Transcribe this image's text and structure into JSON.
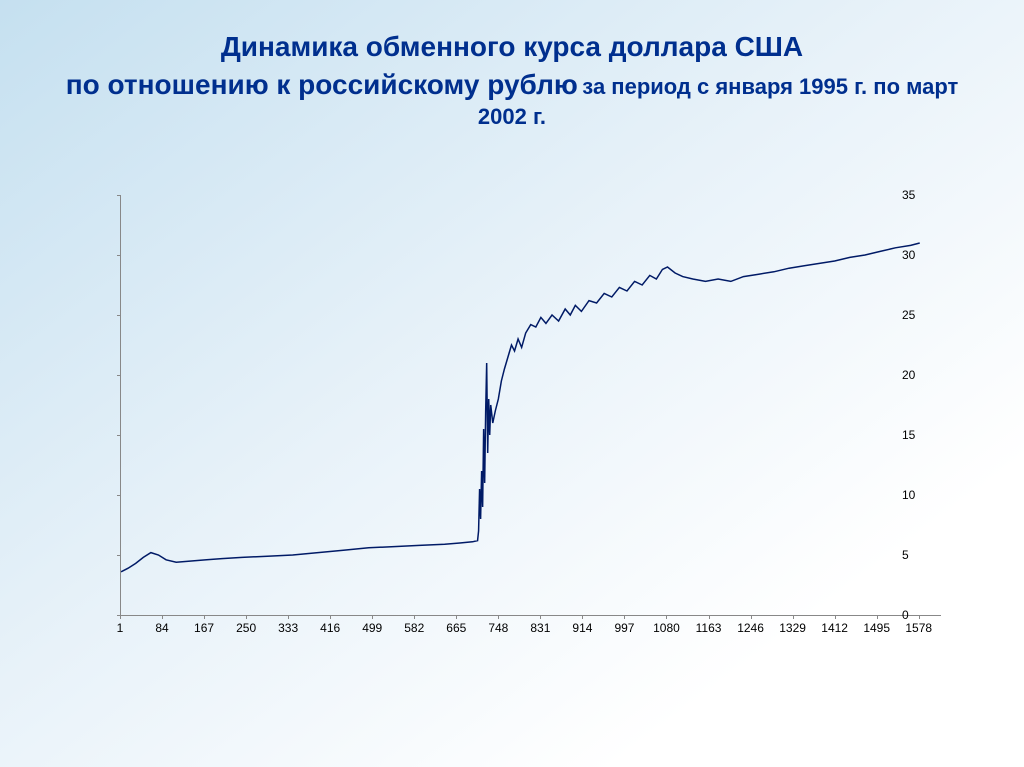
{
  "title": {
    "line1": "Динамика обменного курса доллара США",
    "line2": "по отношению к российскому рублю",
    "sub": "за период с января 1995 г. по март 2002 г."
  },
  "chart": {
    "type": "line",
    "line_color": "#001a66",
    "line_width": 1.5,
    "tick_font_size": 12,
    "tick_color": "#000000",
    "axis_color": "#888888",
    "plot_bg": "transparent",
    "ylim": [
      0,
      35
    ],
    "yticks": [
      0,
      5,
      10,
      15,
      20,
      25,
      30,
      35
    ],
    "xlim": [
      1,
      1620
    ],
    "xticks": [
      1,
      84,
      167,
      250,
      333,
      416,
      499,
      582,
      665,
      748,
      831,
      914,
      997,
      1080,
      1163,
      1246,
      1329,
      1412,
      1495,
      1578
    ],
    "series": [
      {
        "x": 1,
        "y": 3.6
      },
      {
        "x": 15,
        "y": 3.9
      },
      {
        "x": 30,
        "y": 4.3
      },
      {
        "x": 45,
        "y": 4.8
      },
      {
        "x": 60,
        "y": 5.2
      },
      {
        "x": 75,
        "y": 5.0
      },
      {
        "x": 90,
        "y": 4.6
      },
      {
        "x": 110,
        "y": 4.4
      },
      {
        "x": 140,
        "y": 4.5
      },
      {
        "x": 170,
        "y": 4.6
      },
      {
        "x": 200,
        "y": 4.7
      },
      {
        "x": 240,
        "y": 4.8
      },
      {
        "x": 290,
        "y": 4.9
      },
      {
        "x": 340,
        "y": 5.0
      },
      {
        "x": 390,
        "y": 5.2
      },
      {
        "x": 440,
        "y": 5.4
      },
      {
        "x": 490,
        "y": 5.6
      },
      {
        "x": 540,
        "y": 5.7
      },
      {
        "x": 590,
        "y": 5.8
      },
      {
        "x": 640,
        "y": 5.9
      },
      {
        "x": 670,
        "y": 6.0
      },
      {
        "x": 695,
        "y": 6.1
      },
      {
        "x": 705,
        "y": 6.2
      },
      {
        "x": 707,
        "y": 7.0
      },
      {
        "x": 709,
        "y": 10.5
      },
      {
        "x": 711,
        "y": 8.0
      },
      {
        "x": 713,
        "y": 12.0
      },
      {
        "x": 715,
        "y": 9.0
      },
      {
        "x": 717,
        "y": 15.5
      },
      {
        "x": 719,
        "y": 11.0
      },
      {
        "x": 721,
        "y": 17.0
      },
      {
        "x": 723,
        "y": 21.0
      },
      {
        "x": 725,
        "y": 13.5
      },
      {
        "x": 727,
        "y": 18.0
      },
      {
        "x": 729,
        "y": 15.0
      },
      {
        "x": 731,
        "y": 17.5
      },
      {
        "x": 735,
        "y": 16.0
      },
      {
        "x": 740,
        "y": 17.0
      },
      {
        "x": 746,
        "y": 18.0
      },
      {
        "x": 752,
        "y": 19.5
      },
      {
        "x": 758,
        "y": 20.5
      },
      {
        "x": 765,
        "y": 21.5
      },
      {
        "x": 772,
        "y": 22.5
      },
      {
        "x": 778,
        "y": 22.0
      },
      {
        "x": 785,
        "y": 23.0
      },
      {
        "x": 792,
        "y": 22.3
      },
      {
        "x": 800,
        "y": 23.5
      },
      {
        "x": 810,
        "y": 24.2
      },
      {
        "x": 820,
        "y": 24.0
      },
      {
        "x": 830,
        "y": 24.8
      },
      {
        "x": 840,
        "y": 24.3
      },
      {
        "x": 852,
        "y": 25.0
      },
      {
        "x": 865,
        "y": 24.5
      },
      {
        "x": 878,
        "y": 25.5
      },
      {
        "x": 888,
        "y": 25.0
      },
      {
        "x": 898,
        "y": 25.8
      },
      {
        "x": 910,
        "y": 25.3
      },
      {
        "x": 925,
        "y": 26.2
      },
      {
        "x": 940,
        "y": 26.0
      },
      {
        "x": 955,
        "y": 26.8
      },
      {
        "x": 970,
        "y": 26.5
      },
      {
        "x": 985,
        "y": 27.3
      },
      {
        "x": 1000,
        "y": 27.0
      },
      {
        "x": 1015,
        "y": 27.8
      },
      {
        "x": 1030,
        "y": 27.5
      },
      {
        "x": 1045,
        "y": 28.3
      },
      {
        "x": 1058,
        "y": 28.0
      },
      {
        "x": 1070,
        "y": 28.8
      },
      {
        "x": 1080,
        "y": 29.0
      },
      {
        "x": 1095,
        "y": 28.5
      },
      {
        "x": 1110,
        "y": 28.2
      },
      {
        "x": 1130,
        "y": 28.0
      },
      {
        "x": 1155,
        "y": 27.8
      },
      {
        "x": 1180,
        "y": 28.0
      },
      {
        "x": 1205,
        "y": 27.8
      },
      {
        "x": 1230,
        "y": 28.2
      },
      {
        "x": 1260,
        "y": 28.4
      },
      {
        "x": 1290,
        "y": 28.6
      },
      {
        "x": 1320,
        "y": 28.9
      },
      {
        "x": 1350,
        "y": 29.1
      },
      {
        "x": 1380,
        "y": 29.3
      },
      {
        "x": 1410,
        "y": 29.5
      },
      {
        "x": 1440,
        "y": 29.8
      },
      {
        "x": 1470,
        "y": 30.0
      },
      {
        "x": 1500,
        "y": 30.3
      },
      {
        "x": 1530,
        "y": 30.6
      },
      {
        "x": 1560,
        "y": 30.8
      },
      {
        "x": 1578,
        "y": 31.0
      }
    ]
  }
}
